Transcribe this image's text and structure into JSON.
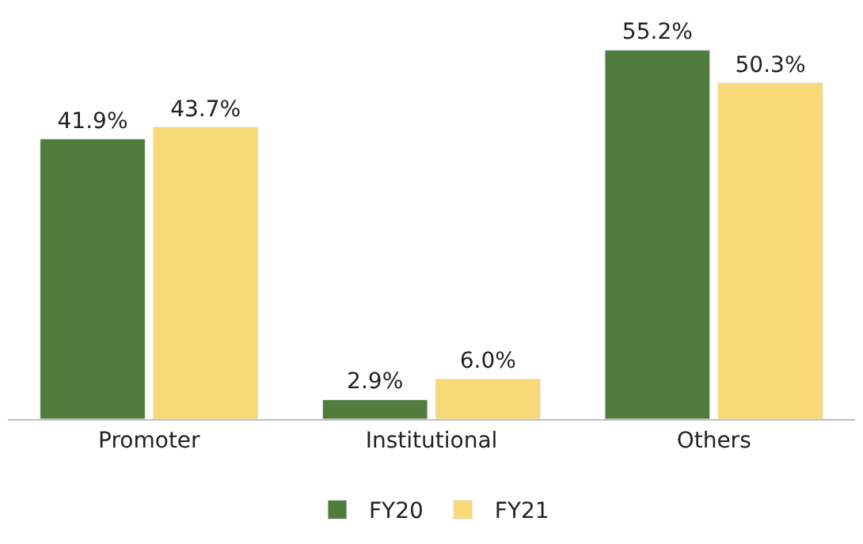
{
  "chart_data": {
    "type": "bar",
    "categories": [
      "Promoter",
      "Institutional",
      "Others"
    ],
    "series": [
      {
        "name": "FY20",
        "color": "#507c3c",
        "values": [
          41.9,
          2.9,
          55.2
        ],
        "value_labels": [
          "41.9%",
          "2.9%",
          "55.2%"
        ]
      },
      {
        "name": "FY21",
        "color": "#f8d978",
        "values": [
          43.7,
          6.0,
          50.3
        ],
        "value_labels": [
          "43.7%",
          "6.0%",
          "50.3%"
        ]
      }
    ],
    "tick_labels": "x",
    "legend": "bottom"
  }
}
